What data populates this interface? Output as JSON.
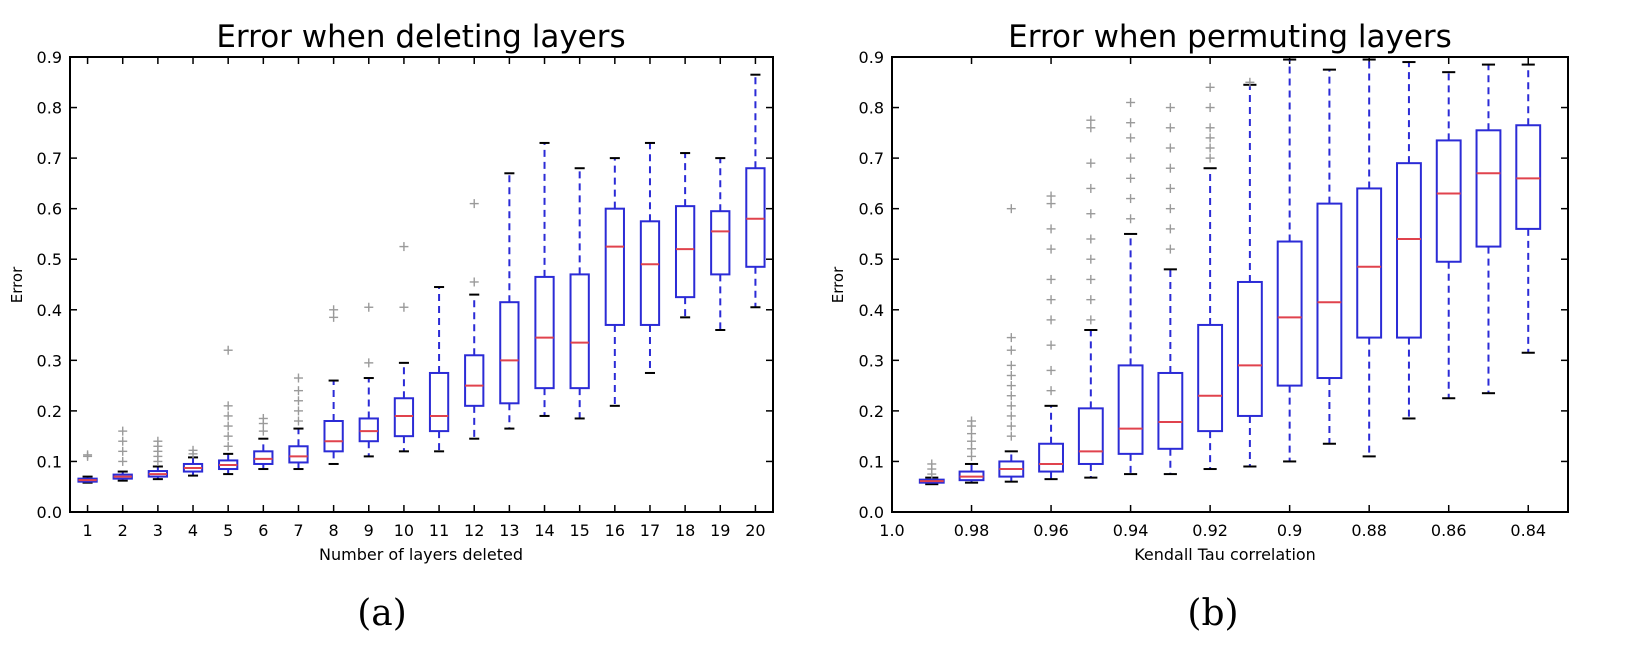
{
  "chart_data": [
    {
      "type": "box",
      "title": "Error when deleting layers",
      "xlabel": "Number of layers deleted",
      "ylabel": "Error",
      "ylim": [
        0.0,
        0.9
      ],
      "yticks": [
        "0.0",
        "0.1",
        "0.2",
        "0.3",
        "0.4",
        "0.5",
        "0.6",
        "0.7",
        "0.8",
        "0.9"
      ],
      "categories": [
        "1",
        "2",
        "3",
        "4",
        "5",
        "6",
        "7",
        "8",
        "9",
        "10",
        "11",
        "12",
        "13",
        "14",
        "15",
        "16",
        "17",
        "18",
        "19",
        "20"
      ],
      "boxes": [
        {
          "whislo": 0.058,
          "q1": 0.06,
          "med": 0.063,
          "q3": 0.066,
          "whishi": 0.07,
          "fliers": [
            0.11,
            0.113
          ]
        },
        {
          "whislo": 0.062,
          "q1": 0.066,
          "med": 0.07,
          "q3": 0.074,
          "whishi": 0.08,
          "fliers": [
            0.1,
            0.12,
            0.14,
            0.16
          ]
        },
        {
          "whislo": 0.065,
          "q1": 0.07,
          "med": 0.075,
          "q3": 0.081,
          "whishi": 0.09,
          "fliers": [
            0.1,
            0.11,
            0.12,
            0.13,
            0.14
          ]
        },
        {
          "whislo": 0.072,
          "q1": 0.08,
          "med": 0.087,
          "q3": 0.095,
          "whishi": 0.108,
          "fliers": [
            0.115,
            0.122
          ]
        },
        {
          "whislo": 0.075,
          "q1": 0.085,
          "med": 0.093,
          "q3": 0.102,
          "whishi": 0.115,
          "fliers": [
            0.13,
            0.15,
            0.17,
            0.19,
            0.21,
            0.32
          ]
        },
        {
          "whislo": 0.085,
          "q1": 0.095,
          "med": 0.105,
          "q3": 0.12,
          "whishi": 0.145,
          "fliers": [
            0.16,
            0.175,
            0.185
          ]
        },
        {
          "whislo": 0.085,
          "q1": 0.098,
          "med": 0.11,
          "q3": 0.13,
          "whishi": 0.165,
          "fliers": [
            0.18,
            0.2,
            0.22,
            0.24,
            0.265
          ]
        },
        {
          "whislo": 0.095,
          "q1": 0.12,
          "med": 0.14,
          "q3": 0.18,
          "whishi": 0.26,
          "fliers": [
            0.385,
            0.4
          ]
        },
        {
          "whislo": 0.11,
          "q1": 0.14,
          "med": 0.16,
          "q3": 0.185,
          "whishi": 0.265,
          "fliers": [
            0.295,
            0.405
          ]
        },
        {
          "whislo": 0.12,
          "q1": 0.15,
          "med": 0.19,
          "q3": 0.225,
          "whishi": 0.295,
          "fliers": [
            0.405,
            0.525
          ]
        },
        {
          "whislo": 0.12,
          "q1": 0.16,
          "med": 0.19,
          "q3": 0.275,
          "whishi": 0.445,
          "fliers": []
        },
        {
          "whislo": 0.145,
          "q1": 0.21,
          "med": 0.25,
          "q3": 0.31,
          "whishi": 0.43,
          "fliers": [
            0.455,
            0.61
          ]
        },
        {
          "whislo": 0.165,
          "q1": 0.215,
          "med": 0.3,
          "q3": 0.415,
          "whishi": 0.67,
          "fliers": []
        },
        {
          "whislo": 0.19,
          "q1": 0.245,
          "med": 0.345,
          "q3": 0.465,
          "whishi": 0.73,
          "fliers": []
        },
        {
          "whislo": 0.185,
          "q1": 0.245,
          "med": 0.335,
          "q3": 0.47,
          "whishi": 0.68,
          "fliers": []
        },
        {
          "whislo": 0.21,
          "q1": 0.37,
          "med": 0.525,
          "q3": 0.6,
          "whishi": 0.7,
          "fliers": []
        },
        {
          "whislo": 0.275,
          "q1": 0.37,
          "med": 0.49,
          "q3": 0.575,
          "whishi": 0.73,
          "fliers": []
        },
        {
          "whislo": 0.385,
          "q1": 0.425,
          "med": 0.52,
          "q3": 0.605,
          "whishi": 0.71,
          "fliers": []
        },
        {
          "whislo": 0.36,
          "q1": 0.47,
          "med": 0.555,
          "q3": 0.595,
          "whishi": 0.7,
          "fliers": []
        },
        {
          "whislo": 0.405,
          "q1": 0.485,
          "med": 0.58,
          "q3": 0.68,
          "whishi": 0.865,
          "fliers": []
        }
      ],
      "caption": "(a)"
    },
    {
      "type": "box",
      "title": "Error when permuting layers",
      "xlabel": "Kendall Tau correlation",
      "ylabel": "Error",
      "ylim": [
        0.0,
        0.9
      ],
      "yticks": [
        "0.0",
        "0.1",
        "0.2",
        "0.3",
        "0.4",
        "0.5",
        "0.6",
        "0.7",
        "0.8",
        "0.9"
      ],
      "xlim": [
        1.0,
        0.83
      ],
      "xticks": [
        {
          "value": 1.0,
          "label": "1.0"
        },
        {
          "value": 0.98,
          "label": "0.98"
        },
        {
          "value": 0.96,
          "label": "0.96"
        },
        {
          "value": 0.94,
          "label": "0.94"
        },
        {
          "value": 0.92,
          "label": "0.92"
        },
        {
          "value": 0.9,
          "label": "0.9"
        },
        {
          "value": 0.88,
          "label": "0.88"
        },
        {
          "value": 0.86,
          "label": "0.86"
        },
        {
          "value": 0.84,
          "label": "0.84"
        }
      ],
      "boxes": [
        {
          "x": 0.99,
          "whislo": 0.055,
          "q1": 0.058,
          "med": 0.061,
          "q3": 0.064,
          "whishi": 0.068,
          "fliers": [
            0.075,
            0.085,
            0.095
          ]
        },
        {
          "x": 0.98,
          "whislo": 0.058,
          "q1": 0.063,
          "med": 0.07,
          "q3": 0.08,
          "whishi": 0.095,
          "fliers": [
            0.11,
            0.125,
            0.14,
            0.155,
            0.17,
            0.18
          ]
        },
        {
          "x": 0.97,
          "whislo": 0.06,
          "q1": 0.07,
          "med": 0.085,
          "q3": 0.1,
          "whishi": 0.12,
          "fliers": [
            0.15,
            0.17,
            0.19,
            0.21,
            0.23,
            0.25,
            0.27,
            0.29,
            0.32,
            0.345,
            0.6
          ]
        },
        {
          "x": 0.96,
          "whislo": 0.065,
          "q1": 0.08,
          "med": 0.095,
          "q3": 0.135,
          "whishi": 0.21,
          "fliers": [
            0.24,
            0.28,
            0.33,
            0.38,
            0.42,
            0.46,
            0.52,
            0.56,
            0.61,
            0.625
          ]
        },
        {
          "x": 0.95,
          "whislo": 0.068,
          "q1": 0.095,
          "med": 0.12,
          "q3": 0.205,
          "whishi": 0.36,
          "fliers": [
            0.38,
            0.42,
            0.46,
            0.5,
            0.54,
            0.59,
            0.64,
            0.69,
            0.76,
            0.775
          ]
        },
        {
          "x": 0.94,
          "whislo": 0.075,
          "q1": 0.115,
          "med": 0.165,
          "q3": 0.29,
          "whishi": 0.55,
          "fliers": [
            0.58,
            0.62,
            0.66,
            0.7,
            0.74,
            0.77,
            0.81
          ]
        },
        {
          "x": 0.93,
          "whislo": 0.075,
          "q1": 0.125,
          "med": 0.178,
          "q3": 0.275,
          "whishi": 0.48,
          "fliers": [
            0.52,
            0.56,
            0.6,
            0.64,
            0.68,
            0.72,
            0.76,
            0.8
          ]
        },
        {
          "x": 0.92,
          "whislo": 0.085,
          "q1": 0.16,
          "med": 0.23,
          "q3": 0.37,
          "whishi": 0.68,
          "fliers": [
            0.7,
            0.72,
            0.74,
            0.76,
            0.8,
            0.84
          ]
        },
        {
          "x": 0.91,
          "whislo": 0.09,
          "q1": 0.19,
          "med": 0.29,
          "q3": 0.455,
          "whishi": 0.845,
          "fliers": [
            0.85
          ]
        },
        {
          "x": 0.9,
          "whislo": 0.1,
          "q1": 0.25,
          "med": 0.385,
          "q3": 0.535,
          "whishi": 0.895,
          "fliers": []
        },
        {
          "x": 0.89,
          "whislo": 0.135,
          "q1": 0.265,
          "med": 0.415,
          "q3": 0.61,
          "whishi": 0.875,
          "fliers": []
        },
        {
          "x": 0.88,
          "whislo": 0.11,
          "q1": 0.345,
          "med": 0.485,
          "q3": 0.64,
          "whishi": 0.895,
          "fliers": []
        },
        {
          "x": 0.87,
          "whislo": 0.185,
          "q1": 0.345,
          "med": 0.54,
          "q3": 0.69,
          "whishi": 0.89,
          "fliers": []
        },
        {
          "x": 0.86,
          "whislo": 0.225,
          "q1": 0.495,
          "med": 0.63,
          "q3": 0.735,
          "whishi": 0.87,
          "fliers": []
        },
        {
          "x": 0.85,
          "whislo": 0.235,
          "q1": 0.525,
          "med": 0.67,
          "q3": 0.755,
          "whishi": 0.885,
          "fliers": []
        },
        {
          "x": 0.84,
          "whislo": 0.315,
          "q1": 0.56,
          "med": 0.66,
          "q3": 0.765,
          "whishi": 0.885,
          "fliers": []
        }
      ],
      "caption": "(b)"
    }
  ],
  "colors": {
    "box": "#2b2bd6",
    "median": "#e0434d",
    "whisker": "#2b2bd6",
    "cap": "#000000",
    "flier": "#9a9a9a",
    "axis": "#000000"
  }
}
